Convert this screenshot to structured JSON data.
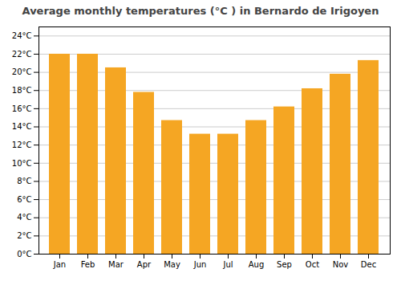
{
  "chart_data": {
    "type": "bar",
    "title": "Average monthly temperatures (°C ) in Bernardo de Irigoyen",
    "categories": [
      "Jan",
      "Feb",
      "Mar",
      "Apr",
      "May",
      "Jun",
      "Jul",
      "Aug",
      "Sep",
      "Oct",
      "Nov",
      "Dec"
    ],
    "values": [
      22.0,
      22.0,
      20.5,
      17.8,
      14.7,
      13.2,
      13.2,
      14.7,
      16.2,
      18.2,
      19.8,
      21.3
    ],
    "color": "#F5A623",
    "ylim": [
      0,
      25
    ],
    "yticks": [
      {
        "value": 0,
        "label": "0°C"
      },
      {
        "value": 2,
        "label": "2°C"
      },
      {
        "value": 4,
        "label": "4°C"
      },
      {
        "value": 6,
        "label": "6°C"
      },
      {
        "value": 8,
        "label": "8°C"
      },
      {
        "value": 10,
        "label": "10°C"
      },
      {
        "value": 12,
        "label": "12°C"
      },
      {
        "value": 14,
        "label": "14°C"
      },
      {
        "value": 16,
        "label": "16°C"
      },
      {
        "value": 18,
        "label": "18°C"
      },
      {
        "value": 20,
        "label": "20°C"
      },
      {
        "value": 22,
        "label": "22°C"
      },
      {
        "value": 24,
        "label": "24°C"
      }
    ],
    "grid": true
  }
}
